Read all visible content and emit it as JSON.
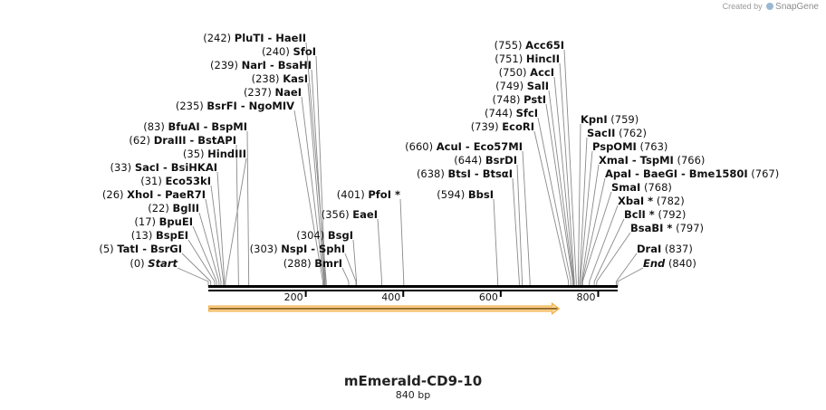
{
  "credit": {
    "prefix": "Created by",
    "brand": "SnapGene"
  },
  "sequence": {
    "name": "mEmerald-CD9-10",
    "length_label": "840 bp",
    "length": 840
  },
  "axis": {
    "ticks": [
      200,
      400,
      600,
      800
    ]
  },
  "feature": {
    "start": 1,
    "end": 720,
    "direction": "forward",
    "color": "#f2a93b"
  },
  "sites": [
    {
      "name": "PluTI  - HaeII",
      "pos": 242,
      "label": "(242)",
      "side": "left"
    },
    {
      "name": "SfoI",
      "pos": 240,
      "label": "(240)",
      "side": "left"
    },
    {
      "name": "NarI  - BsaHI",
      "pos": 239,
      "label": "(239)",
      "side": "left"
    },
    {
      "name": "KasI",
      "pos": 238,
      "label": "(238)",
      "side": "left"
    },
    {
      "name": "NaeI",
      "pos": 237,
      "label": "(237)",
      "side": "left"
    },
    {
      "name": "BsrFI  - NgoMIV",
      "pos": 235,
      "label": "(235)",
      "side": "left"
    },
    {
      "name": "BfuAI  - BspMI",
      "pos": 83,
      "label": "(83)",
      "side": "left"
    },
    {
      "name": "DraIII  - BstAPI",
      "pos": 62,
      "label": "(62)",
      "side": "left"
    },
    {
      "name": "HindIII",
      "pos": 35,
      "label": "(35)",
      "side": "left"
    },
    {
      "name": "SacI  - BsiHKAI",
      "pos": 33,
      "label": "(33)",
      "side": "left"
    },
    {
      "name": "Eco53kI",
      "pos": 31,
      "label": "(31)",
      "side": "left"
    },
    {
      "name": "XhoI  - PaeR7I",
      "pos": 26,
      "label": "(26)",
      "side": "left"
    },
    {
      "name": "BglII",
      "pos": 22,
      "label": "(22)",
      "side": "left"
    },
    {
      "name": "BpuEI",
      "pos": 17,
      "label": "(17)",
      "side": "left"
    },
    {
      "name": "BspEI",
      "pos": 13,
      "label": "(13)",
      "side": "left"
    },
    {
      "name": "TatI  - BsrGI",
      "pos": 5,
      "label": "(5)",
      "side": "left"
    },
    {
      "name": "Start",
      "pos": 0,
      "label": "(0)",
      "side": "left",
      "italic": true
    },
    {
      "name": "NspI  - SphI",
      "pos": 303,
      "label": "(303)",
      "side": "left"
    },
    {
      "name": "BmrI",
      "pos": 288,
      "label": "(288)",
      "side": "left"
    },
    {
      "name": "BsgI",
      "pos": 304,
      "label": "(304)",
      "side": "left"
    },
    {
      "name": "EaeI",
      "pos": 356,
      "label": "(356)",
      "side": "left"
    },
    {
      "name": "PfoI *",
      "pos": 401,
      "label": "(401)",
      "side": "left"
    },
    {
      "name": "BbsI",
      "pos": 594,
      "label": "(594)",
      "side": "left"
    },
    {
      "name": "BtsI  - BtsαI",
      "pos": 638,
      "label": "(638)",
      "side": "left"
    },
    {
      "name": "BsrDI",
      "pos": 644,
      "label": "(644)",
      "side": "left"
    },
    {
      "name": "AcuI  - Eco57MI",
      "pos": 660,
      "label": "(660)",
      "side": "left"
    },
    {
      "name": "EcoRI",
      "pos": 739,
      "label": "(739)",
      "side": "left"
    },
    {
      "name": "SfcI",
      "pos": 744,
      "label": "(744)",
      "side": "left"
    },
    {
      "name": "PstI",
      "pos": 748,
      "label": "(748)",
      "side": "left"
    },
    {
      "name": "SalI",
      "pos": 749,
      "label": "(749)",
      "side": "left"
    },
    {
      "name": "AccI",
      "pos": 750,
      "label": "(750)",
      "side": "left"
    },
    {
      "name": "HincII",
      "pos": 751,
      "label": "(751)",
      "side": "left"
    },
    {
      "name": "Acc65I",
      "pos": 755,
      "label": "(755)",
      "side": "left"
    },
    {
      "name": "KpnI",
      "pos": 759,
      "label": "(759)",
      "side": "right"
    },
    {
      "name": "SacII",
      "pos": 762,
      "label": "(762)",
      "side": "right"
    },
    {
      "name": "PspOMI",
      "pos": 763,
      "label": "(763)",
      "side": "right"
    },
    {
      "name": "XmaI  - TspMI",
      "pos": 766,
      "label": "(766)",
      "side": "right"
    },
    {
      "name": "ApaI  - BaeGI  - Bme1580I",
      "pos": 767,
      "label": "(767)",
      "side": "right"
    },
    {
      "name": "SmaI",
      "pos": 768,
      "label": "(768)",
      "side": "right"
    },
    {
      "name": "XbaI *",
      "pos": 782,
      "label": "(782)",
      "side": "right"
    },
    {
      "name": "BclI *",
      "pos": 792,
      "label": "(792)",
      "side": "right"
    },
    {
      "name": "BsaBI *",
      "pos": 797,
      "label": "(797)",
      "side": "right"
    },
    {
      "name": "DraI",
      "pos": 837,
      "label": "(837)",
      "side": "right"
    },
    {
      "name": "End",
      "pos": 840,
      "label": "(840)",
      "side": "right",
      "italic": true
    }
  ]
}
